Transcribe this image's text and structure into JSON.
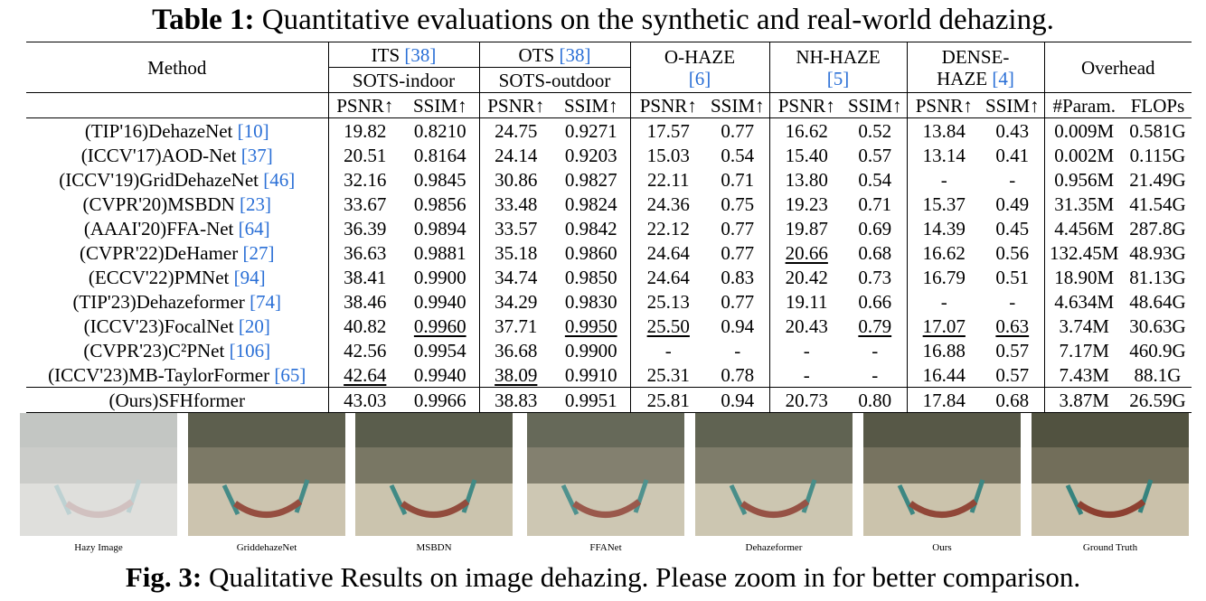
{
  "table_caption": {
    "label": "Table 1:",
    "text": " Quantitative evaluations on the synthetic and real-world dehazing."
  },
  "header": {
    "method": "Method",
    "its": "ITS",
    "its_cite": "[38]",
    "its_sub": "SOTS-indoor",
    "ots": "OTS",
    "ots_cite": "[38]",
    "ots_sub": "SOTS-outdoor",
    "ohaze": "O-HAZE",
    "ohaze_cite": "[6]",
    "nhhaze": "NH-HAZE",
    "nhhaze_cite": "[5]",
    "dense_a": "DENSE-",
    "dense_b": "HAZE",
    "dense_cite": "[4]",
    "overhead": "Overhead",
    "psnr": "PSNR↑",
    "ssim": "SSIM↑",
    "param": "#Param.",
    "flops": "FLOPs"
  },
  "rows": [
    {
      "venue": "(TIP'16)",
      "name": "DehazeNet",
      "cite": "[10]",
      "v": [
        "19.82",
        "0.8210",
        "24.75",
        "0.9271",
        "17.57",
        "0.77",
        "16.62",
        "0.52",
        "13.84",
        "0.43",
        "0.009M",
        "0.581G"
      ]
    },
    {
      "venue": "(ICCV'17)",
      "name": "AOD-Net",
      "cite": "[37]",
      "v": [
        "20.51",
        "0.8164",
        "24.14",
        "0.9203",
        "15.03",
        "0.54",
        "15.40",
        "0.57",
        "13.14",
        "0.41",
        "0.002M",
        "0.115G"
      ]
    },
    {
      "venue": "(ICCV'19)",
      "name": "GridDehazeNet",
      "cite": "[46]",
      "v": [
        "32.16",
        "0.9845",
        "30.86",
        "0.9827",
        "22.11",
        "0.71",
        "13.80",
        "0.54",
        "-",
        "-",
        "0.956M",
        "21.49G"
      ]
    },
    {
      "venue": "(CVPR'20)",
      "name": "MSBDN",
      "cite": "[23]",
      "v": [
        "33.67",
        "0.9856",
        "33.48",
        "0.9824",
        "24.36",
        "0.75",
        "19.23",
        "0.71",
        "15.37",
        "0.49",
        "31.35M",
        "41.54G"
      ]
    },
    {
      "venue": "(AAAI'20)",
      "name": "FFA-Net",
      "cite": "[64]",
      "v": [
        "36.39",
        "0.9894",
        "33.57",
        "0.9842",
        "22.12",
        "0.77",
        "19.87",
        "0.69",
        "14.39",
        "0.45",
        "4.456M",
        "287.8G"
      ]
    },
    {
      "venue": "(CVPR'22)",
      "name": "DeHamer",
      "cite": "[27]",
      "v": [
        "36.63",
        "0.9881",
        "35.18",
        "0.9860",
        "24.64",
        "0.77",
        "20.66",
        "0.68",
        "16.62",
        "0.56",
        "132.45M",
        "48.93G"
      ]
    },
    {
      "venue": "(ECCV'22)",
      "name": "PMNet",
      "cite": "[94]",
      "v": [
        "38.41",
        "0.9900",
        "34.74",
        "0.9850",
        "24.64",
        "0.83",
        "20.42",
        "0.73",
        "16.79",
        "0.51",
        "18.90M",
        "81.13G"
      ]
    },
    {
      "venue": "(TIP'23)",
      "name": "Dehazeformer",
      "cite": "[74]",
      "v": [
        "38.46",
        "0.9940",
        "34.29",
        "0.9830",
        "25.13",
        "0.77",
        "19.11",
        "0.66",
        "-",
        "-",
        "4.634M",
        "48.64G"
      ]
    },
    {
      "venue": "(ICCV'23)",
      "name": "FocalNet",
      "cite": "[20]",
      "v": [
        "40.82",
        "0.9960",
        "37.71",
        "0.9950",
        "25.50",
        "0.94",
        "20.43",
        "0.79",
        "17.07",
        "0.63",
        "3.74M",
        "30.63G"
      ]
    },
    {
      "venue": "(CVPR'23)",
      "name": "C²PNet",
      "cite": "[106]",
      "v": [
        "42.56",
        "0.9954",
        "36.68",
        "0.9900",
        "-",
        "-",
        "-",
        "-",
        "16.88",
        "0.57",
        "7.17M",
        "460.9G"
      ]
    },
    {
      "venue": "(ICCV'23)",
      "name": "MB-TaylorFormer",
      "cite": "[65]",
      "v": [
        "42.64",
        "0.9940",
        "38.09",
        "0.9910",
        "25.31",
        "0.78",
        "-",
        "-",
        "16.44",
        "0.57",
        "7.43M",
        "88.1G"
      ]
    }
  ],
  "ours": {
    "venue": "(Ours)",
    "name": "SFHformer",
    "v": [
      "43.03",
      "0.9966",
      "38.83",
      "0.9951",
      "25.81",
      "0.94",
      "20.73",
      "0.80",
      "17.84",
      "0.68",
      "3.87M",
      "26.59G"
    ]
  },
  "images": [
    {
      "label": "Hazy Image",
      "haze": 0.78
    },
    {
      "label": "GriddehazeNet",
      "haze": 0.12
    },
    {
      "label": "MSBDN",
      "haze": 0.1
    },
    {
      "label": "FFANet",
      "haze": 0.18
    },
    {
      "label": "Dehazeformer",
      "haze": 0.14
    },
    {
      "label": "Ours",
      "haze": 0.08
    },
    {
      "label": "Ground Truth",
      "haze": 0.04
    }
  ],
  "figure_caption": {
    "label": "Fig. 3:",
    "text": " Qualitative Results on image dehazing. Please zoom in for better comparison."
  }
}
